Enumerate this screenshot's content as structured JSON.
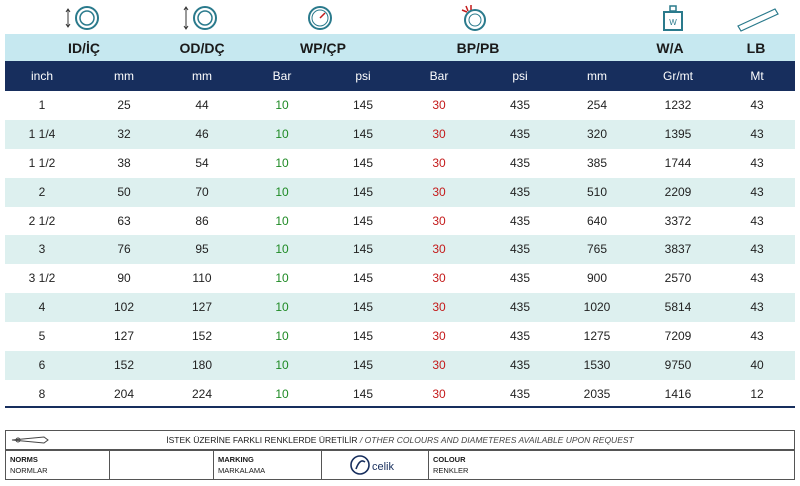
{
  "groups": [
    "ID/İÇ",
    "OD/DÇ",
    "WP/ÇP",
    "BP/PB",
    "W/A",
    "LB"
  ],
  "units": [
    "inch",
    "mm",
    "mm",
    "Bar",
    "psi",
    "Bar",
    "psi",
    "mm",
    "Gr/mt",
    "Mt"
  ],
  "rows": [
    [
      "1",
      "25",
      "44",
      "10",
      "145",
      "30",
      "435",
      "254",
      "1232",
      "43"
    ],
    [
      "1 1/4",
      "32",
      "46",
      "10",
      "145",
      "30",
      "435",
      "320",
      "1395",
      "43"
    ],
    [
      "1 1/2",
      "38",
      "54",
      "10",
      "145",
      "30",
      "435",
      "385",
      "1744",
      "43"
    ],
    [
      "2",
      "50",
      "70",
      "10",
      "145",
      "30",
      "435",
      "510",
      "2209",
      "43"
    ],
    [
      "2 1/2",
      "63",
      "86",
      "10",
      "145",
      "30",
      "435",
      "640",
      "3372",
      "43"
    ],
    [
      "3",
      "76",
      "95",
      "10",
      "145",
      "30",
      "435",
      "765",
      "3837",
      "43"
    ],
    [
      "3 1/2",
      "90",
      "110",
      "10",
      "145",
      "30",
      "435",
      "900",
      "2570",
      "43"
    ],
    [
      "4",
      "102",
      "127",
      "10",
      "145",
      "30",
      "435",
      "1020",
      "5814",
      "43"
    ],
    [
      "5",
      "127",
      "152",
      "10",
      "145",
      "30",
      "435",
      "1275",
      "7209",
      "43"
    ],
    [
      "6",
      "152",
      "180",
      "10",
      "145",
      "30",
      "435",
      "1530",
      "9750",
      "40"
    ],
    [
      "8",
      "204",
      "224",
      "10",
      "145",
      "30",
      "435",
      "2035",
      "1416",
      "12"
    ]
  ],
  "footer": {
    "note_tr": "İSTEK ÜZERİNE FARKLI RENKLERDE ÜRETİLİR",
    "note_sep": " / ",
    "note_en": "OTHER COLOURS AND DIAMETERES AVAILABLE UPON REQUEST",
    "norms": "NORMS",
    "norms_tr": "NORMLAR",
    "marking": "MARKING",
    "marking_tr": "MARKALAMA",
    "brand": "celik",
    "colour": "COLOUR",
    "colour_tr": "RENKLER"
  },
  "colors": {
    "header_light": "#c6e8f0",
    "header_dark": "#172e5d",
    "stripe": "#ddf0ef",
    "wp_green": "#1e8a24",
    "bp_red": "#c41a1a"
  },
  "icons": [
    "inner-diameter-icon",
    "outer-diameter-icon",
    "pressure-gauge-icon",
    "burst-pressure-icon",
    "weight-icon",
    "length-icon"
  ]
}
